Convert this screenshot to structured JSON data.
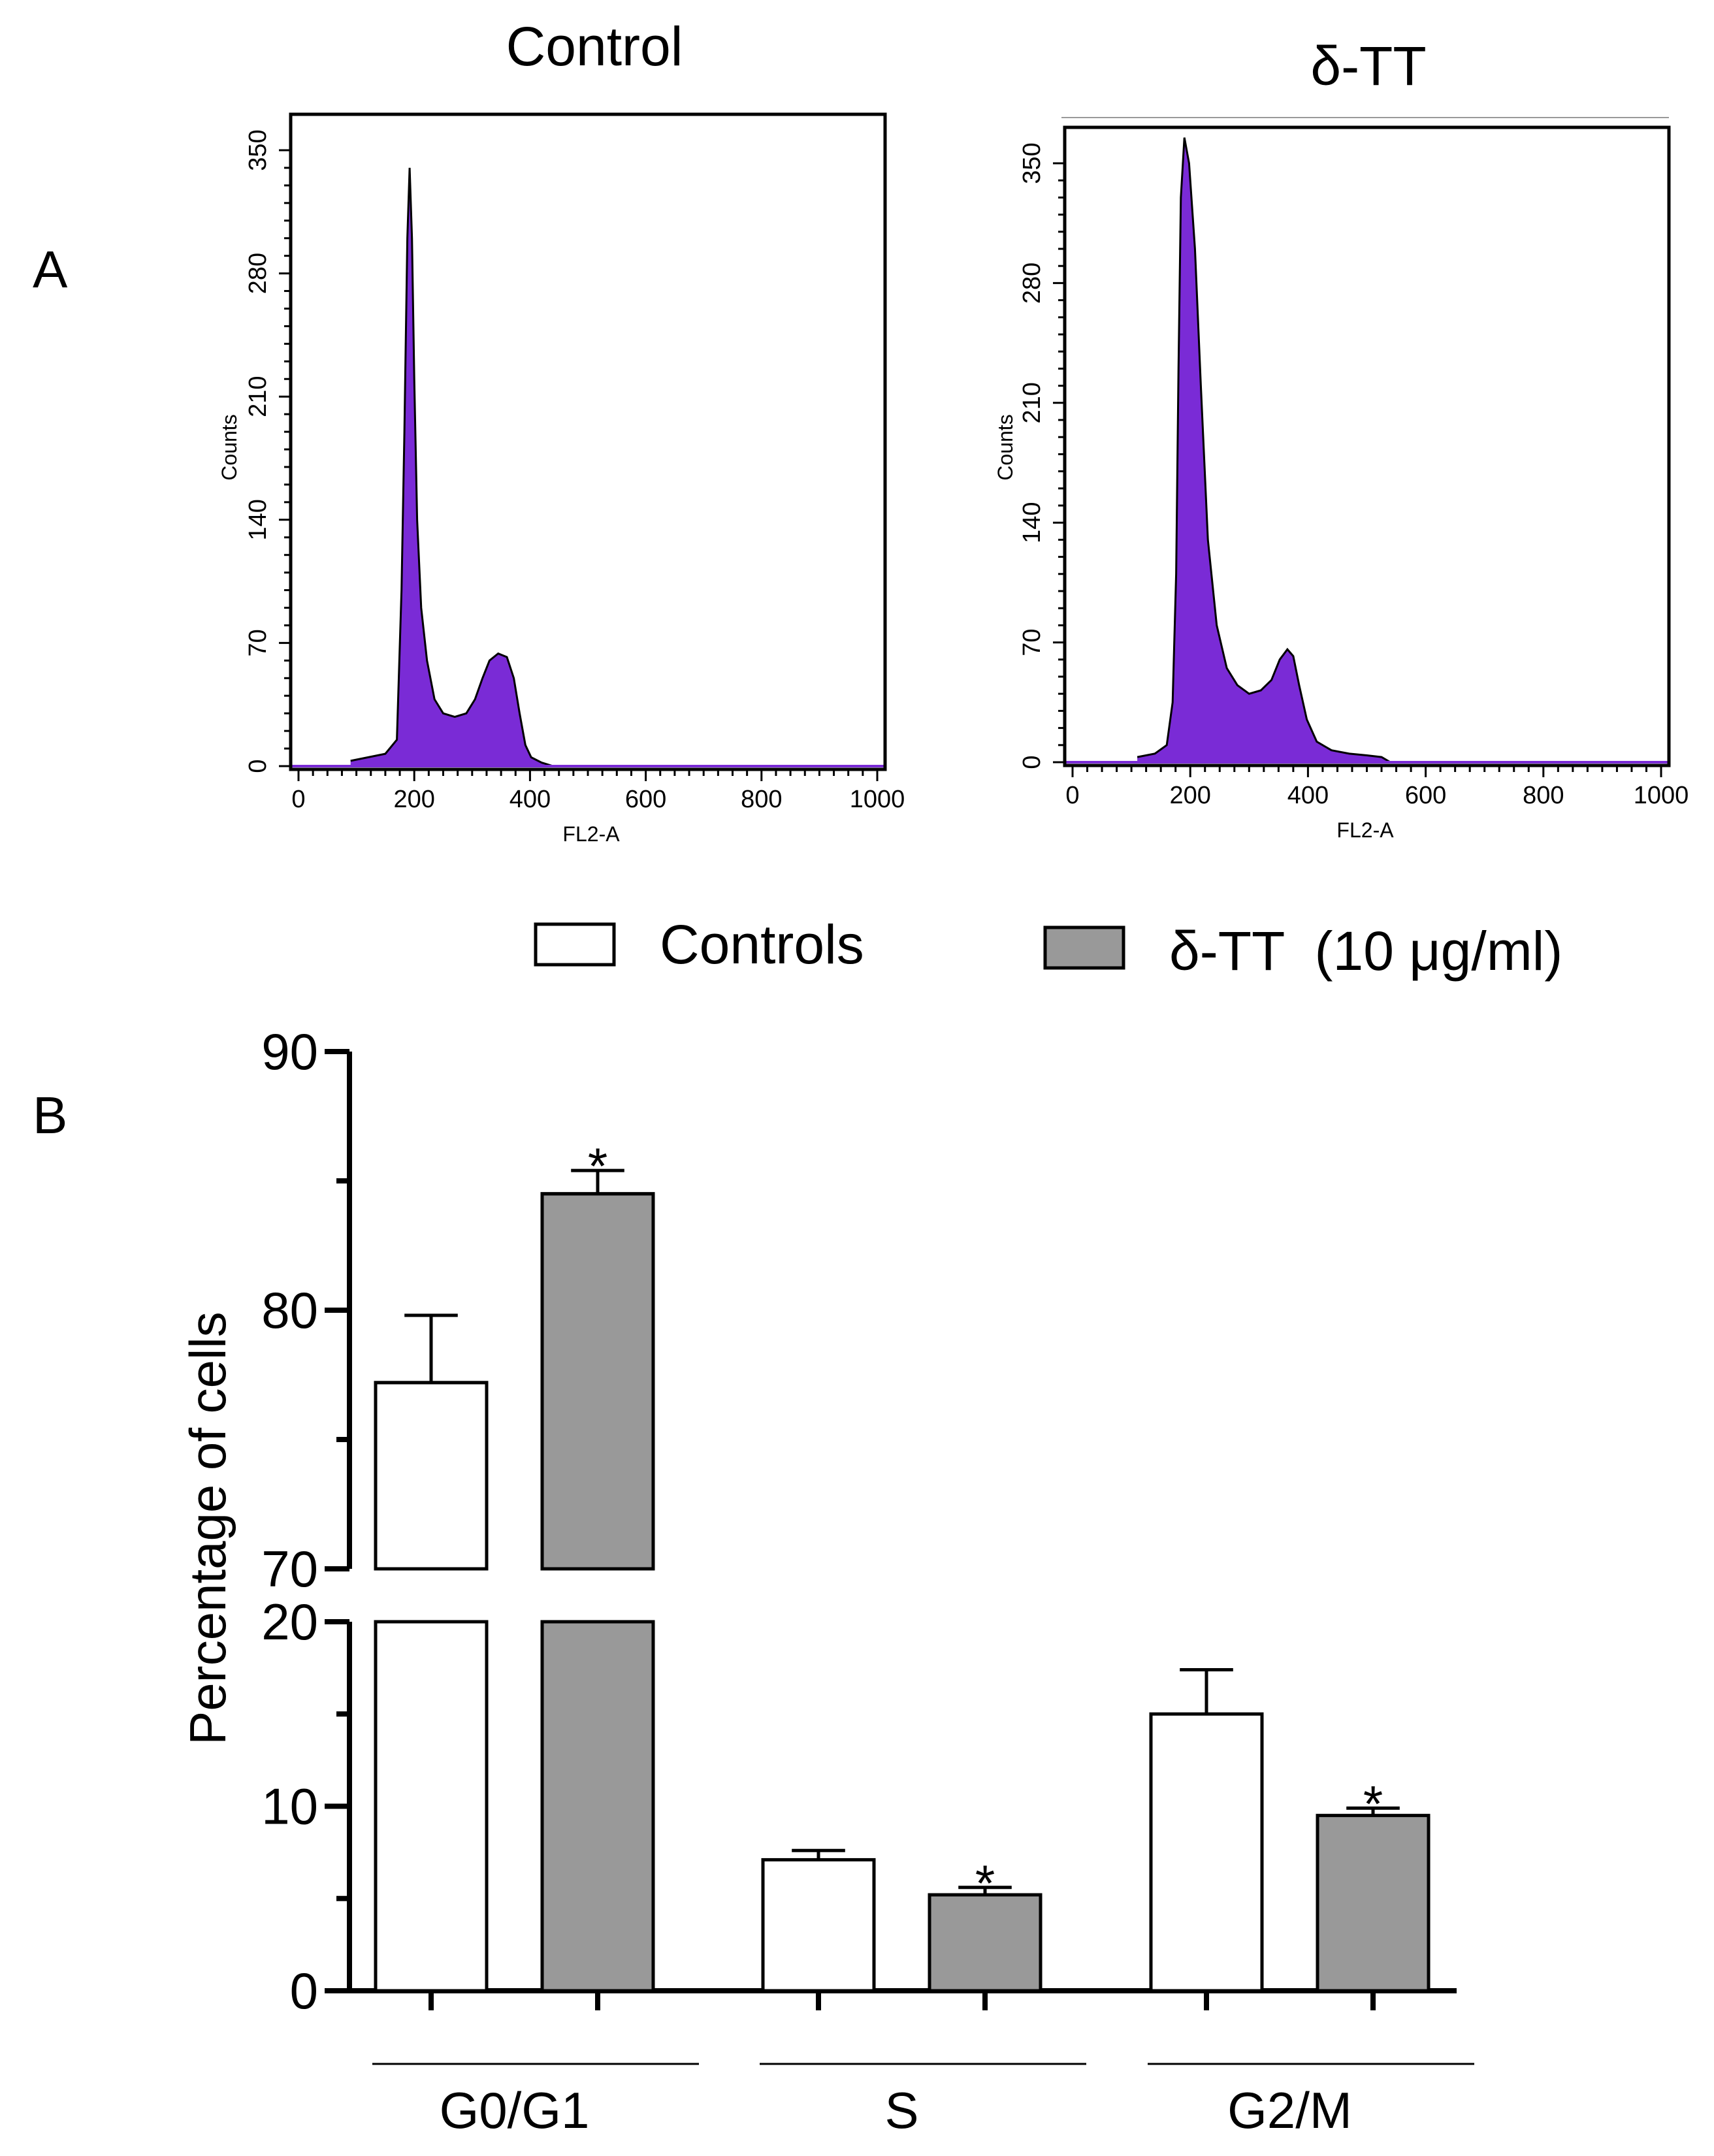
{
  "panel_labels": {
    "a": "A",
    "b": "B"
  },
  "chart_data": [
    {
      "type": "area",
      "title": "Control",
      "xlabel": "FL2-A",
      "ylabel": "Counts",
      "xlim": [
        0,
        1000
      ],
      "ylim": [
        0,
        350
      ],
      "xticks": [
        "0",
        "200",
        "400",
        "600",
        "800",
        "1000"
      ],
      "yticks": [
        "0",
        "70",
        "140",
        "210",
        "280",
        "350"
      ],
      "color": "#7a2bd6",
      "points": [
        [
          90,
          3
        ],
        [
          120,
          5
        ],
        [
          150,
          7
        ],
        [
          170,
          15
        ],
        [
          178,
          100
        ],
        [
          183,
          190
        ],
        [
          188,
          300
        ],
        [
          192,
          340
        ],
        [
          196,
          300
        ],
        [
          200,
          220
        ],
        [
          205,
          140
        ],
        [
          212,
          90
        ],
        [
          222,
          60
        ],
        [
          235,
          38
        ],
        [
          250,
          30
        ],
        [
          270,
          28
        ],
        [
          290,
          30
        ],
        [
          305,
          38
        ],
        [
          318,
          50
        ],
        [
          330,
          60
        ],
        [
          345,
          64
        ],
        [
          360,
          62
        ],
        [
          372,
          50
        ],
        [
          382,
          30
        ],
        [
          392,
          12
        ],
        [
          402,
          5
        ],
        [
          420,
          2
        ],
        [
          440,
          0
        ]
      ]
    },
    {
      "type": "area",
      "title": "δ-TT",
      "xlabel": "FL2-A",
      "ylabel": "Counts",
      "xlim": [
        0,
        1000
      ],
      "ylim": [
        0,
        350
      ],
      "xticks": [
        "0",
        "200",
        "400",
        "600",
        "800",
        "1000"
      ],
      "yticks": [
        "0",
        "70",
        "140",
        "210",
        "280",
        "350"
      ],
      "color": "#7a2bd6",
      "points": [
        [
          110,
          3
        ],
        [
          140,
          5
        ],
        [
          160,
          10
        ],
        [
          170,
          35
        ],
        [
          176,
          110
        ],
        [
          180,
          230
        ],
        [
          184,
          330
        ],
        [
          190,
          365
        ],
        [
          198,
          350
        ],
        [
          208,
          300
        ],
        [
          218,
          220
        ],
        [
          230,
          130
        ],
        [
          245,
          80
        ],
        [
          262,
          55
        ],
        [
          280,
          45
        ],
        [
          300,
          40
        ],
        [
          320,
          42
        ],
        [
          338,
          48
        ],
        [
          352,
          60
        ],
        [
          365,
          66
        ],
        [
          375,
          62
        ],
        [
          385,
          45
        ],
        [
          398,
          25
        ],
        [
          415,
          12
        ],
        [
          440,
          7
        ],
        [
          470,
          5
        ],
        [
          500,
          4
        ],
        [
          525,
          3
        ],
        [
          540,
          0
        ]
      ]
    },
    {
      "type": "bar",
      "categories": [
        "G0/G1",
        "S",
        "G2/M"
      ],
      "ylabel": "Percentage of cells",
      "ylim": [
        0,
        90
      ],
      "axis_break": [
        20,
        70
      ],
      "yticks": [
        "0",
        "10",
        "20",
        "70",
        "80",
        "90"
      ],
      "legend_position": "top",
      "series": [
        {
          "name": "Controls",
          "values": [
            77.2,
            7.1,
            15.0
          ],
          "errors": [
            2.6,
            0.5,
            2.4
          ],
          "significant": [
            false,
            false,
            false
          ],
          "color": "#ffffff"
        },
        {
          "name": "δ-TT  (10 μg/ml)",
          "values": [
            84.5,
            5.2,
            9.5
          ],
          "errors": [
            0.9,
            0.4,
            0.4
          ],
          "significant": [
            true,
            true,
            true
          ],
          "color": "#999999"
        }
      ],
      "significance_marker": "*"
    }
  ]
}
